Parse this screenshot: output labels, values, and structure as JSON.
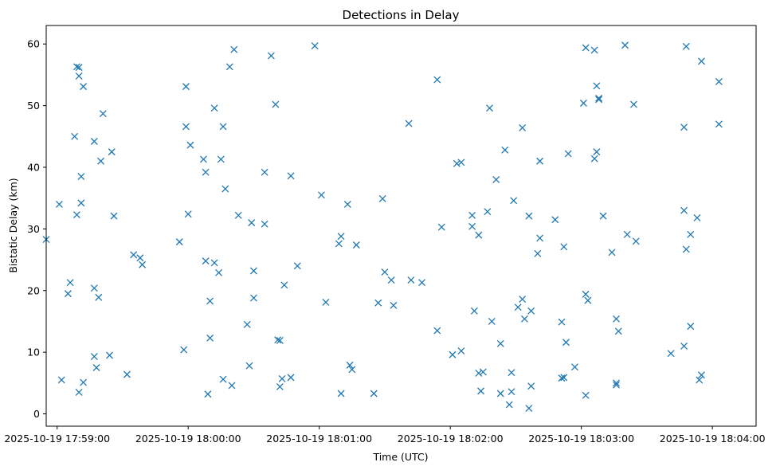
{
  "chart_data": {
    "type": "scatter",
    "title": "Detections in Delay",
    "xlabel": "Time (UTC)",
    "ylabel": "Bistatic Delay (km)",
    "x_ticks": [
      "2025-10-19 17:59:00",
      "2025-10-19 18:00:00",
      "2025-10-19 18:01:00",
      "2025-10-19 18:02:00",
      "2025-10-19 18:03:00",
      "2025-10-19 18:04:00"
    ],
    "y_ticks": [
      0,
      10,
      20,
      30,
      40,
      50,
      60
    ],
    "xlim": [
      "2025-10-19 17:58:55",
      "2025-10-19 18:04:20"
    ],
    "ylim": [
      -2,
      63
    ],
    "marker": "x",
    "color": "#1f77b4",
    "grid": false,
    "points": [
      [
        "17:58:55",
        28.3
      ],
      [
        "17:59:01",
        34.0
      ],
      [
        "17:59:02",
        5.5
      ],
      [
        "17:59:05",
        19.5
      ],
      [
        "17:59:06",
        21.3
      ],
      [
        "17:59:08",
        45.0
      ],
      [
        "17:59:09",
        56.3
      ],
      [
        "17:59:09",
        32.3
      ],
      [
        "17:59:10",
        3.5
      ],
      [
        "17:59:10",
        54.8
      ],
      [
        "17:59:10",
        56.2
      ],
      [
        "17:59:11",
        38.5
      ],
      [
        "17:59:11",
        34.2
      ],
      [
        "17:59:12",
        53.1
      ],
      [
        "17:59:12",
        5.1
      ],
      [
        "17:59:17",
        44.2
      ],
      [
        "17:59:17",
        20.4
      ],
      [
        "17:59:17",
        9.3
      ],
      [
        "17:59:18",
        7.5
      ],
      [
        "17:59:19",
        18.9
      ],
      [
        "17:59:20",
        41.0
      ],
      [
        "17:59:21",
        48.7
      ],
      [
        "17:59:24",
        9.5
      ],
      [
        "17:59:25",
        42.5
      ],
      [
        "17:59:26",
        32.1
      ],
      [
        "17:59:32",
        6.4
      ],
      [
        "17:59:35",
        25.8
      ],
      [
        "17:59:38",
        25.3
      ],
      [
        "17:59:39",
        24.2
      ],
      [
        "17:59:56",
        27.9
      ],
      [
        "17:59:58",
        10.4
      ],
      [
        "17:59:59",
        53.1
      ],
      [
        "17:59:59",
        46.6
      ],
      [
        "18:00:00",
        32.4
      ],
      [
        "18:00:01",
        43.6
      ],
      [
        "18:00:07",
        41.3
      ],
      [
        "18:00:08",
        39.2
      ],
      [
        "18:00:08",
        24.8
      ],
      [
        "18:00:09",
        3.2
      ],
      [
        "18:00:10",
        18.3
      ],
      [
        "18:00:10",
        12.3
      ],
      [
        "18:00:12",
        49.6
      ],
      [
        "18:00:12",
        24.5
      ],
      [
        "18:00:14",
        22.9
      ],
      [
        "18:00:15",
        41.3
      ],
      [
        "18:00:16",
        46.6
      ],
      [
        "18:00:16",
        5.6
      ],
      [
        "18:00:17",
        36.5
      ],
      [
        "18:00:19",
        56.3
      ],
      [
        "18:00:20",
        4.6
      ],
      [
        "18:00:21",
        59.1
      ],
      [
        "18:00:23",
        32.2
      ],
      [
        "18:00:27",
        14.5
      ],
      [
        "18:00:28",
        7.8
      ],
      [
        "18:00:29",
        31.0
      ],
      [
        "18:00:30",
        18.8
      ],
      [
        "18:00:30",
        23.2
      ],
      [
        "18:00:35",
        30.8
      ],
      [
        "18:00:35",
        39.2
      ],
      [
        "18:00:38",
        58.1
      ],
      [
        "18:00:40",
        50.2
      ],
      [
        "18:00:41",
        12.0
      ],
      [
        "18:00:42",
        11.9
      ],
      [
        "18:00:42",
        4.4
      ],
      [
        "18:00:43",
        5.7
      ],
      [
        "18:00:44",
        20.9
      ],
      [
        "18:00:47",
        38.6
      ],
      [
        "18:00:47",
        5.9
      ],
      [
        "18:00:50",
        24.0
      ],
      [
        "18:00:58",
        59.7
      ],
      [
        "18:01:01",
        35.5
      ],
      [
        "18:01:03",
        18.1
      ],
      [
        "18:01:09",
        27.6
      ],
      [
        "18:01:10",
        28.8
      ],
      [
        "18:01:10",
        3.3
      ],
      [
        "18:01:13",
        34.0
      ],
      [
        "18:01:14",
        7.9
      ],
      [
        "18:01:15",
        7.2
      ],
      [
        "18:01:17",
        27.4
      ],
      [
        "18:01:25",
        3.3
      ],
      [
        "18:01:27",
        18.0
      ],
      [
        "18:01:29",
        34.9
      ],
      [
        "18:01:30",
        23.0
      ],
      [
        "18:01:33",
        21.7
      ],
      [
        "18:01:34",
        17.6
      ],
      [
        "18:01:41",
        47.1
      ],
      [
        "18:01:42",
        21.7
      ],
      [
        "18:01:47",
        21.3
      ],
      [
        "18:01:54",
        54.2
      ],
      [
        "18:01:54",
        13.5
      ],
      [
        "18:01:56",
        30.3
      ],
      [
        "18:02:01",
        9.6
      ],
      [
        "18:02:03",
        40.6
      ],
      [
        "18:02:05",
        40.8
      ],
      [
        "18:02:05",
        10.2
      ],
      [
        "18:02:10",
        30.4
      ],
      [
        "18:02:10",
        32.2
      ],
      [
        "18:02:11",
        16.7
      ],
      [
        "18:02:13",
        29.0
      ],
      [
        "18:02:13",
        6.6
      ],
      [
        "18:02:14",
        3.7
      ],
      [
        "18:02:15",
        6.8
      ],
      [
        "18:02:17",
        32.8
      ],
      [
        "18:02:18",
        49.6
      ],
      [
        "18:02:19",
        15.0
      ],
      [
        "18:02:21",
        38.0
      ],
      [
        "18:02:23",
        11.4
      ],
      [
        "18:02:23",
        3.3
      ],
      [
        "18:02:25",
        42.8
      ],
      [
        "18:02:27",
        1.5
      ],
      [
        "18:02:28",
        6.7
      ],
      [
        "18:02:28",
        3.6
      ],
      [
        "18:02:29",
        34.6
      ],
      [
        "18:02:31",
        17.3
      ],
      [
        "18:02:33",
        18.6
      ],
      [
        "18:02:33",
        46.4
      ],
      [
        "18:02:34",
        15.4
      ],
      [
        "18:02:36",
        32.1
      ],
      [
        "18:02:36",
        0.9
      ],
      [
        "18:02:37",
        16.7
      ],
      [
        "18:02:37",
        4.5
      ],
      [
        "18:02:40",
        26.0
      ],
      [
        "18:02:41",
        28.5
      ],
      [
        "18:02:41",
        41.0
      ],
      [
        "18:02:48",
        31.5
      ],
      [
        "18:02:51",
        14.9
      ],
      [
        "18:02:51",
        5.8
      ],
      [
        "18:02:52",
        27.1
      ],
      [
        "18:02:52",
        5.9
      ],
      [
        "18:02:53",
        11.6
      ],
      [
        "18:02:54",
        42.2
      ],
      [
        "18:02:57",
        7.6
      ],
      [
        "18:03:01",
        50.4
      ],
      [
        "18:03:02",
        59.4
      ],
      [
        "18:03:02",
        19.4
      ],
      [
        "18:03:02",
        3.0
      ],
      [
        "18:03:03",
        18.4
      ],
      [
        "18:03:06",
        59.0
      ],
      [
        "18:03:06",
        41.4
      ],
      [
        "18:03:07",
        53.2
      ],
      [
        "18:03:07",
        42.5
      ],
      [
        "18:03:08",
        51.2
      ],
      [
        "18:03:08",
        51.0
      ],
      [
        "18:03:10",
        32.1
      ],
      [
        "18:03:14",
        26.2
      ],
      [
        "18:03:16",
        5.0
      ],
      [
        "18:03:16",
        4.7
      ],
      [
        "18:03:16",
        15.4
      ],
      [
        "18:03:17",
        13.4
      ],
      [
        "18:03:20",
        59.8
      ],
      [
        "18:03:21",
        29.1
      ],
      [
        "18:03:24",
        50.2
      ],
      [
        "18:03:25",
        28.0
      ],
      [
        "18:03:41",
        9.8
      ],
      [
        "18:03:47",
        46.5
      ],
      [
        "18:03:47",
        33.0
      ],
      [
        "18:03:47",
        11.0
      ],
      [
        "18:03:48",
        59.6
      ],
      [
        "18:03:48",
        26.7
      ],
      [
        "18:03:50",
        29.1
      ],
      [
        "18:03:50",
        14.2
      ],
      [
        "18:03:53",
        31.8
      ],
      [
        "18:03:54",
        5.5
      ],
      [
        "18:03:55",
        6.3
      ],
      [
        "18:03:55",
        57.2
      ],
      [
        "18:04:03",
        53.9
      ],
      [
        "18:04:03",
        47.0
      ]
    ]
  }
}
